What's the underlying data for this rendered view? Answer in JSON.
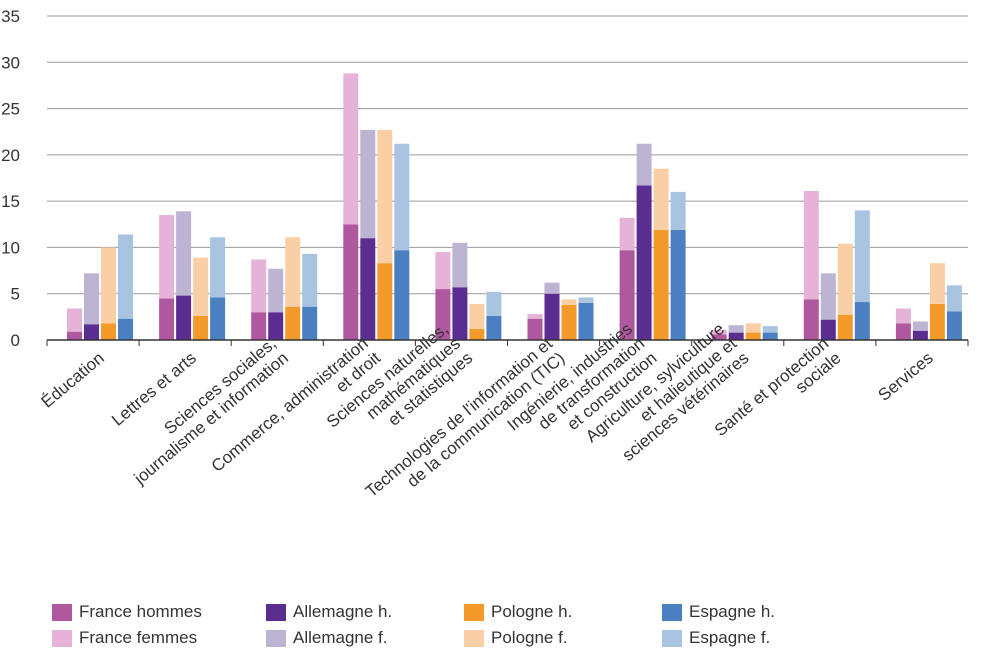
{
  "chart_data": {
    "type": "bar",
    "stacked_pairs": true,
    "categories": [
      "Éducation",
      "Lettres et arts",
      "Sciences sociales,\njournalisme et information",
      "Commerce, administration\net droit",
      "Sciences naturelles,\nmathématiques\net statistiques",
      "Technologies de l'information et\nde la communication (TIC)",
      "Ingénierie, industries\nde transformation\net construction",
      "Agriculture, sylviculture\net halieutique et\nsciences vétérinaires",
      "Santé et protection\nsociale",
      "Services"
    ],
    "series": [
      {
        "name": "France hommes",
        "country": "France",
        "sex": "h",
        "color": "#b0589f",
        "values": [
          0.9,
          4.5,
          3.0,
          12.5,
          5.5,
          2.3,
          9.7,
          0.6,
          4.4,
          1.8
        ]
      },
      {
        "name": "France femmes",
        "country": "France",
        "sex": "f",
        "color": "#e6b3d8",
        "values": [
          2.5,
          9.0,
          5.7,
          16.3,
          4.0,
          0.5,
          3.5,
          0.5,
          11.7,
          1.6
        ]
      },
      {
        "name": "Allemagne h.",
        "country": "Allemagne",
        "sex": "h",
        "color": "#5b2d91",
        "values": [
          1.7,
          4.8,
          3.0,
          11.0,
          5.7,
          5.0,
          16.7,
          0.8,
          2.2,
          1.0
        ]
      },
      {
        "name": "Allemagne f.",
        "country": "Allemagne",
        "sex": "f",
        "color": "#bdb3d3",
        "values": [
          5.5,
          9.1,
          4.7,
          11.7,
          4.8,
          1.2,
          4.5,
          0.8,
          5.0,
          1.0
        ]
      },
      {
        "name": "Pologne h.",
        "country": "Pologne",
        "sex": "h",
        "color": "#f39a2b",
        "values": [
          1.8,
          2.6,
          3.6,
          8.3,
          1.2,
          3.8,
          11.9,
          0.8,
          2.7,
          3.9
        ]
      },
      {
        "name": "Pologne f.",
        "country": "Pologne",
        "sex": "f",
        "color": "#fbcfa6",
        "values": [
          8.2,
          6.3,
          7.5,
          14.4,
          2.7,
          0.6,
          6.6,
          1.0,
          7.7,
          4.4
        ]
      },
      {
        "name": "Espagne h.",
        "country": "Espagne",
        "sex": "h",
        "color": "#4a7fc1",
        "values": [
          2.3,
          4.6,
          3.6,
          9.7,
          2.6,
          4.0,
          11.9,
          0.8,
          4.1,
          3.1
        ]
      },
      {
        "name": "Espagne f.",
        "country": "Espagne",
        "sex": "f",
        "color": "#a9c4e0",
        "values": [
          9.1,
          6.5,
          5.7,
          11.5,
          2.6,
          0.6,
          4.1,
          0.7,
          9.9,
          2.8
        ]
      }
    ],
    "ylim": [
      0,
      35
    ],
    "yticks": [
      0,
      5,
      10,
      15,
      20,
      25,
      30,
      35
    ],
    "grid": true,
    "legend_position": "bottom",
    "title": "",
    "xlabel": "",
    "ylabel": ""
  }
}
